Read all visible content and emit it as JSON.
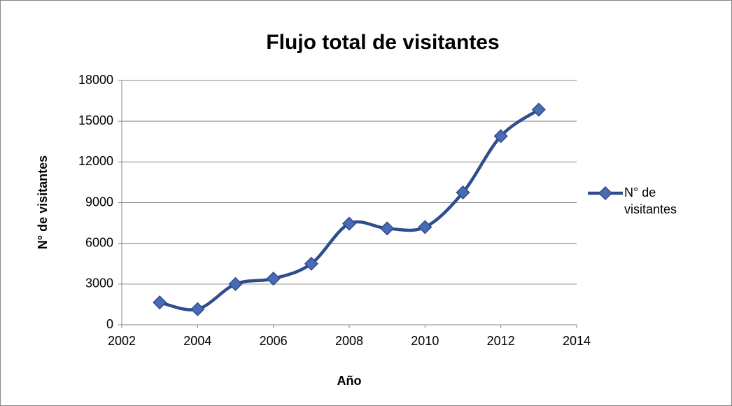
{
  "chart_data": {
    "type": "line",
    "smooth": true,
    "title": "Flujo total de visitantes",
    "x_label": "Año",
    "y_label": "N° de visitantes",
    "x": [
      2003,
      2004,
      2005,
      2006,
      2007,
      2008,
      2009,
      2010,
      2011,
      2012,
      2013
    ],
    "series": [
      {
        "name": "N° de visitantes",
        "color": "#2e4d8c",
        "marker_color": "#4a6ab3",
        "values": [
          1650,
          1150,
          3000,
          3400,
          4500,
          7450,
          7100,
          7200,
          9750,
          13900,
          15850
        ]
      }
    ],
    "xlim": [
      2002,
      2014
    ],
    "xticks": [
      2002,
      2004,
      2006,
      2008,
      2010,
      2012,
      2014
    ],
    "ylim": [
      0,
      18000
    ],
    "yticks": [
      0,
      3000,
      6000,
      9000,
      12000,
      15000,
      18000
    ],
    "grid": true,
    "legend": "right"
  }
}
